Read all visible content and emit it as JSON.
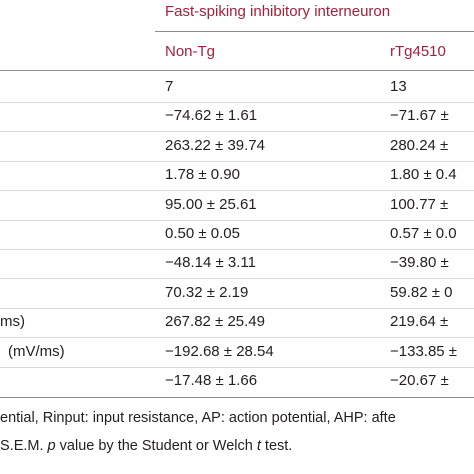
{
  "table": {
    "group_header": "Fast-spiking inhibitory interneuron",
    "columns": [
      "Non-Tg",
      "rTg4510"
    ],
    "rows": [
      {
        "cells": [
          "7",
          "13"
        ]
      },
      {
        "cells": [
          "−74.62 ± 1.61",
          "−71.67 ±"
        ]
      },
      {
        "cells": [
          "263.22 ± 39.74",
          "280.24 ±"
        ]
      },
      {
        "cells": [
          "1.78 ± 0.90",
          "1.80 ± 0.4"
        ]
      },
      {
        "cells": [
          "95.00 ± 25.61",
          "100.77 ±"
        ]
      },
      {
        "cells": [
          "0.50 ± 0.05",
          "0.57 ± 0.0"
        ]
      },
      {
        "cells": [
          "−48.14 ± 3.11",
          "−39.80 ±"
        ]
      },
      {
        "cells": [
          "70.32 ± 2.19",
          "59.82 ± 0"
        ]
      },
      {
        "label": "ms)",
        "cells": [
          "267.82 ± 25.49",
          "219.64 ±"
        ]
      },
      {
        "label": "(mV/ms)",
        "cells": [
          "−192.68 ± 28.54",
          "−133.85 ±"
        ]
      },
      {
        "cells": [
          "−17.48 ± 1.66",
          "−20.67 ±"
        ]
      }
    ]
  },
  "footnote": {
    "line1": "ential, Rinput: input resistance, AP: action potential, AHP: afte",
    "line2": [
      "S.E.M. ",
      "p",
      " value by the Student or Welch ",
      "t",
      " test."
    ]
  }
}
